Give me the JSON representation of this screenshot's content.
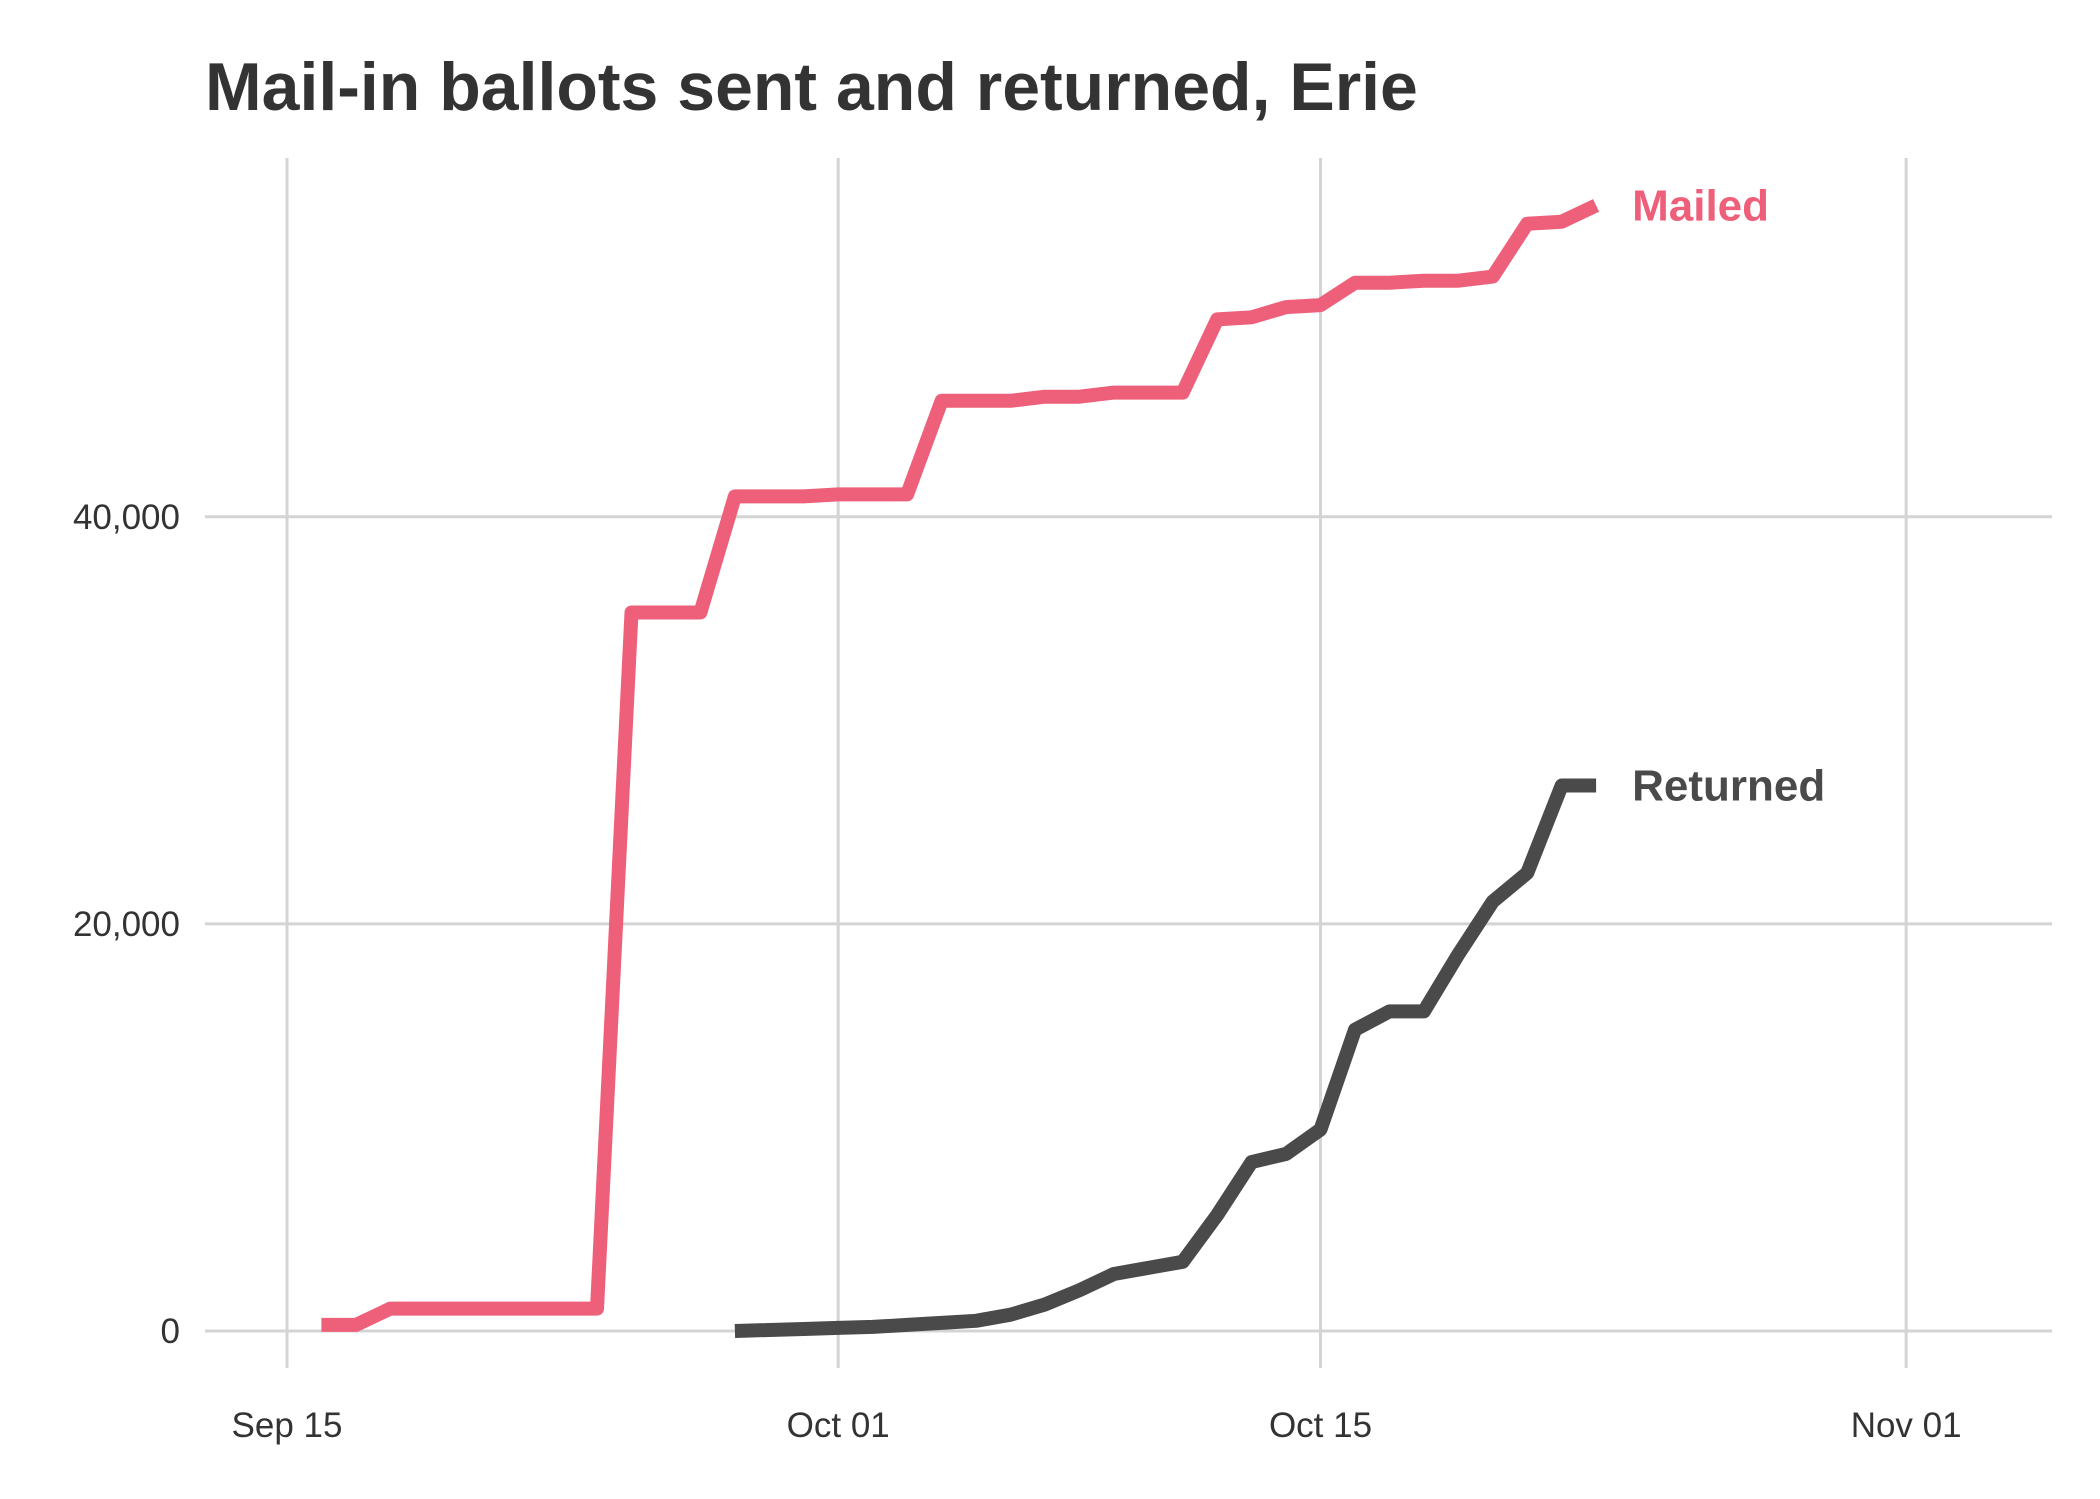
{
  "chart_data": {
    "type": "line",
    "title": "Mail-in ballots sent and returned, Erie",
    "xlabel": "",
    "ylabel": "",
    "x_ticks": [
      {
        "date": "2020-09-15",
        "label": "Sep 15"
      },
      {
        "date": "2020-10-01",
        "label": "Oct 01"
      },
      {
        "date": "2020-10-15",
        "label": "Oct 15"
      },
      {
        "date": "2020-11-01",
        "label": "Nov 01"
      }
    ],
    "y_ticks": [
      {
        "value": 0,
        "label": "0"
      },
      {
        "value": 20000,
        "label": "20,000"
      },
      {
        "value": 40000,
        "label": "40,000"
      }
    ],
    "xlim": [
      "2020-09-15",
      "2020-11-01"
    ],
    "ylim": [
      0,
      55000
    ],
    "grid": true,
    "legend": "direct labels at line ends",
    "series": [
      {
        "name": "Mailed",
        "color": "#EE5F7A",
        "points": [
          {
            "x": "2020-09-16",
            "y": 300
          },
          {
            "x": "2020-09-17",
            "y": 300
          },
          {
            "x": "2020-09-18",
            "y": 1100
          },
          {
            "x": "2020-09-19",
            "y": 1100
          },
          {
            "x": "2020-09-20",
            "y": 1100
          },
          {
            "x": "2020-09-21",
            "y": 1100
          },
          {
            "x": "2020-09-22",
            "y": 1100
          },
          {
            "x": "2020-09-23",
            "y": 1100
          },
          {
            "x": "2020-09-24",
            "y": 1100
          },
          {
            "x": "2020-09-25",
            "y": 35300
          },
          {
            "x": "2020-09-26",
            "y": 35300
          },
          {
            "x": "2020-09-27",
            "y": 35300
          },
          {
            "x": "2020-09-28",
            "y": 41000
          },
          {
            "x": "2020-09-29",
            "y": 41000
          },
          {
            "x": "2020-09-30",
            "y": 41000
          },
          {
            "x": "2020-10-01",
            "y": 41100
          },
          {
            "x": "2020-10-02",
            "y": 41100
          },
          {
            "x": "2020-10-03",
            "y": 41100
          },
          {
            "x": "2020-10-04",
            "y": 45700
          },
          {
            "x": "2020-10-05",
            "y": 45700
          },
          {
            "x": "2020-10-06",
            "y": 45700
          },
          {
            "x": "2020-10-07",
            "y": 45900
          },
          {
            "x": "2020-10-08",
            "y": 45900
          },
          {
            "x": "2020-10-09",
            "y": 46100
          },
          {
            "x": "2020-10-10",
            "y": 46100
          },
          {
            "x": "2020-10-11",
            "y": 46100
          },
          {
            "x": "2020-10-12",
            "y": 49700
          },
          {
            "x": "2020-10-13",
            "y": 49800
          },
          {
            "x": "2020-10-14",
            "y": 50300
          },
          {
            "x": "2020-10-15",
            "y": 50400
          },
          {
            "x": "2020-10-16",
            "y": 51500
          },
          {
            "x": "2020-10-17",
            "y": 51500
          },
          {
            "x": "2020-10-18",
            "y": 51600
          },
          {
            "x": "2020-10-19",
            "y": 51600
          },
          {
            "x": "2020-10-20",
            "y": 51800
          },
          {
            "x": "2020-10-21",
            "y": 54400
          },
          {
            "x": "2020-10-22",
            "y": 54500
          },
          {
            "x": "2020-10-23",
            "y": 55300
          }
        ]
      },
      {
        "name": "Returned",
        "color": "#4A4A4A",
        "points": [
          {
            "x": "2020-09-28",
            "y": 0
          },
          {
            "x": "2020-09-29",
            "y": 50
          },
          {
            "x": "2020-09-30",
            "y": 100
          },
          {
            "x": "2020-10-01",
            "y": 150
          },
          {
            "x": "2020-10-02",
            "y": 200
          },
          {
            "x": "2020-10-03",
            "y": 300
          },
          {
            "x": "2020-10-04",
            "y": 400
          },
          {
            "x": "2020-10-05",
            "y": 500
          },
          {
            "x": "2020-10-06",
            "y": 800
          },
          {
            "x": "2020-10-07",
            "y": 1300
          },
          {
            "x": "2020-10-08",
            "y": 2000
          },
          {
            "x": "2020-10-09",
            "y": 2800
          },
          {
            "x": "2020-10-10",
            "y": 3100
          },
          {
            "x": "2020-10-11",
            "y": 3400
          },
          {
            "x": "2020-10-12",
            "y": 5700
          },
          {
            "x": "2020-10-13",
            "y": 8300
          },
          {
            "x": "2020-10-14",
            "y": 8700
          },
          {
            "x": "2020-10-15",
            "y": 9900
          },
          {
            "x": "2020-10-16",
            "y": 14800
          },
          {
            "x": "2020-10-17",
            "y": 15700
          },
          {
            "x": "2020-10-18",
            "y": 15700
          },
          {
            "x": "2020-10-19",
            "y": 18500
          },
          {
            "x": "2020-10-20",
            "y": 21100
          },
          {
            "x": "2020-10-21",
            "y": 22500
          },
          {
            "x": "2020-10-22",
            "y": 26800
          },
          {
            "x": "2020-10-23",
            "y": 26800
          }
        ]
      }
    ]
  }
}
